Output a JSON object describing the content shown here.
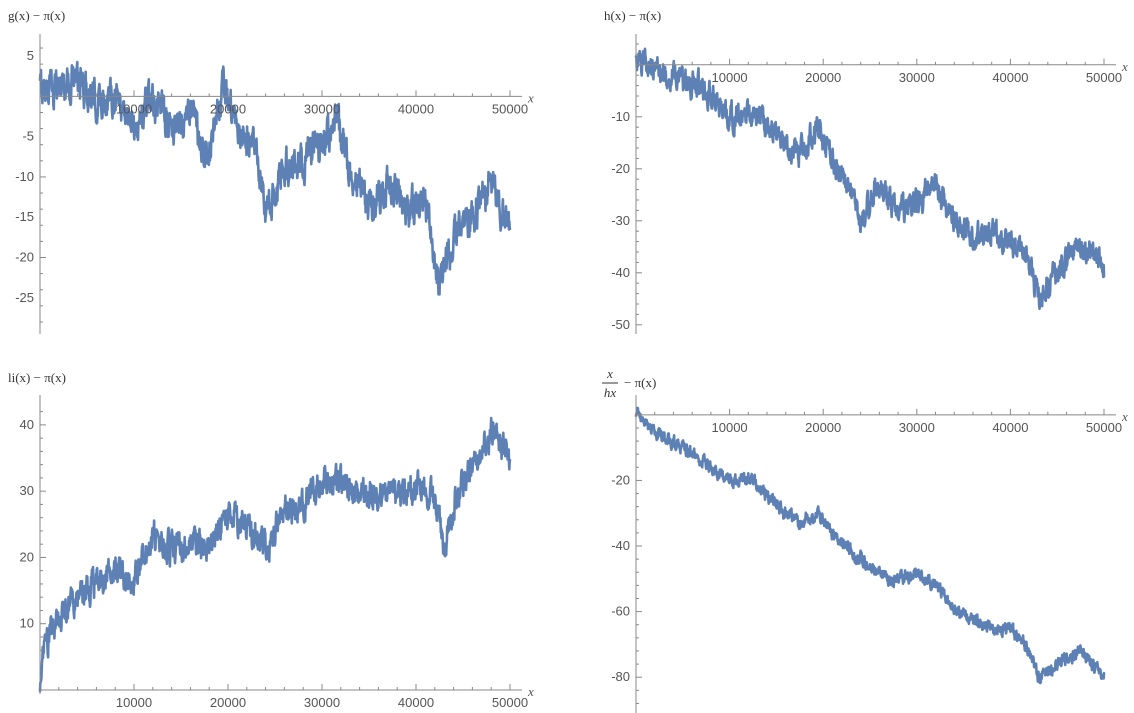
{
  "colors": {
    "series": "#5E81B5",
    "axis": "#888888",
    "text": "#555555"
  },
  "chart_data": [
    {
      "type": "line",
      "title": "",
      "ylabel": "g(x) − π(x)",
      "xlabel": "x",
      "xlim": [
        0,
        50000
      ],
      "ylim": [
        -29,
        6.5
      ],
      "xticks": [
        10000,
        20000,
        30000,
        40000,
        50000
      ],
      "xtick_labels": [
        "10000",
        "20000",
        "30000",
        "40000",
        "50000"
      ],
      "yticks": [
        5,
        -5,
        -10,
        -15,
        -20,
        -25
      ],
      "ytick_labels": [
        "5",
        "-5",
        "-10",
        "-15",
        "-20",
        "-25"
      ],
      "grid": false,
      "series": [
        {
          "x": [
            0,
            2000,
            4000,
            6000,
            8000,
            10000,
            12000,
            14000,
            16000,
            18000,
            19500,
            21000,
            23000,
            24000,
            26000,
            28000,
            30000,
            31500,
            33000,
            35000,
            37000,
            39000,
            41000,
            42500,
            44000,
            46000,
            48000,
            50000
          ],
          "y": [
            1,
            1.5,
            2,
            -1,
            0.5,
            -4,
            0,
            -4,
            -2,
            -8,
            1,
            -4,
            -7,
            -15,
            -9,
            -8,
            -6,
            -3,
            -9,
            -14,
            -11,
            -14,
            -13,
            -24,
            -17,
            -15,
            -11,
            -16
          ],
          "amp": 2.2
        }
      ]
    },
    {
      "type": "line",
      "title": "",
      "ylabel": "h(x) − π(x)",
      "xlabel": "x",
      "xlim": [
        0,
        50000
      ],
      "ylim": [
        -51,
        4
      ],
      "xticks": [
        10000,
        20000,
        30000,
        40000,
        50000
      ],
      "xtick_labels": [
        "10000",
        "20000",
        "30000",
        "40000",
        "50000"
      ],
      "yticks": [
        -10,
        -20,
        -30,
        -40,
        -50
      ],
      "ytick_labels": [
        "-10",
        "-20",
        "-30",
        "-40",
        "-50"
      ],
      "grid": false,
      "series": [
        {
          "x": [
            0,
            1000,
            2500,
            5000,
            7500,
            10000,
            12500,
            15000,
            17500,
            19500,
            21000,
            23000,
            24000,
            26000,
            28000,
            30000,
            32000,
            34000,
            36000,
            38000,
            40000,
            42000,
            43000,
            45000,
            47000,
            49000,
            50000
          ],
          "y": [
            0,
            1,
            -1,
            -3,
            -5,
            -10,
            -10,
            -13,
            -17,
            -12,
            -18,
            -24,
            -30,
            -23,
            -28,
            -26,
            -23,
            -30,
            -33,
            -32,
            -34,
            -38,
            -45,
            -40,
            -36,
            -36,
            -40
          ],
          "amp": 2.5
        }
      ]
    },
    {
      "type": "line",
      "title": "",
      "ylabel": "li(x) − π(x)",
      "xlabel": "x",
      "xlim": [
        0,
        50000
      ],
      "ylim": [
        0,
        43
      ],
      "xticks": [
        10000,
        20000,
        30000,
        40000,
        50000
      ],
      "xtick_labels": [
        "10000",
        "20000",
        "30000",
        "40000",
        "50000"
      ],
      "yticks": [
        10,
        20,
        30,
        40
      ],
      "ytick_labels": [
        "10",
        "20",
        "30",
        "40"
      ],
      "grid": false,
      "series": [
        {
          "x": [
            0,
            300,
            1000,
            2000,
            4000,
            6000,
            8000,
            10000,
            12000,
            14000,
            16000,
            18000,
            20000,
            22000,
            24000,
            26000,
            28000,
            30000,
            32000,
            34000,
            36000,
            38000,
            40000,
            42000,
            43000,
            44000,
            46000,
            48000,
            50000
          ],
          "y": [
            0,
            5,
            8,
            11,
            14,
            16,
            18,
            17,
            24,
            21,
            22,
            22,
            27,
            25,
            21,
            27,
            28,
            32,
            31,
            29,
            30,
            30,
            31,
            29,
            21,
            28,
            33,
            39,
            35
          ],
          "amp": 2.2
        }
      ]
    },
    {
      "type": "line",
      "title": "",
      "ylabel_fraction": {
        "numerator": "x",
        "denominator": "hx"
      },
      "ylabel_suffix": "− π(x)",
      "xlabel": "x",
      "xlim": [
        0,
        50000
      ],
      "ylim": [
        -90,
        3
      ],
      "xticks": [
        10000,
        20000,
        30000,
        40000,
        50000
      ],
      "xtick_labels": [
        "10000",
        "20000",
        "30000",
        "40000",
        "50000"
      ],
      "yticks": [
        -20,
        -40,
        -60,
        -80
      ],
      "ytick_labels": [
        "-20",
        "-40",
        "-60",
        "-80"
      ],
      "grid": false,
      "series": [
        {
          "x": [
            0,
            2000,
            5000,
            8000,
            10000,
            12000,
            15000,
            17500,
            19500,
            21000,
            23000,
            25000,
            27500,
            30000,
            32000,
            34000,
            36000,
            38000,
            40000,
            42000,
            43000,
            45000,
            47500,
            50000
          ],
          "y": [
            0,
            -5,
            -10,
            -16,
            -20,
            -19,
            -28,
            -33,
            -30,
            -36,
            -42,
            -46,
            -51,
            -48,
            -52,
            -59,
            -62,
            -65,
            -65,
            -72,
            -80,
            -76,
            -72,
            -80
          ],
          "amp": 2.0
        }
      ]
    }
  ]
}
